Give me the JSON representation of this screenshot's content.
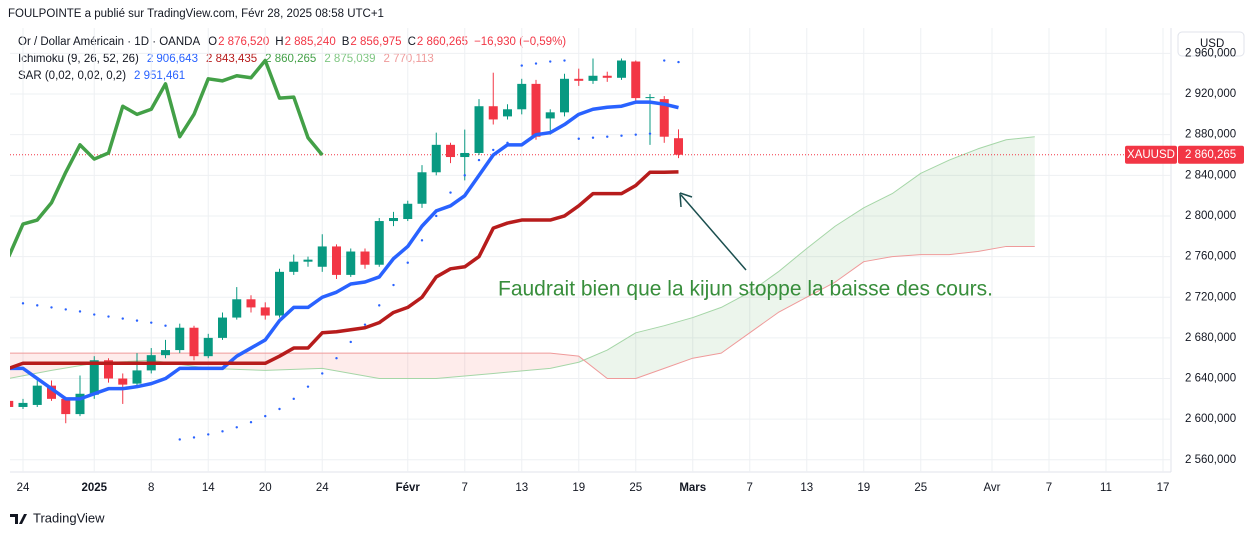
{
  "header": {
    "publisher": "FOULPOINTE a publié sur TradingView.com, Févr 28, 2025 08:58 UTC+1"
  },
  "legend": {
    "symbol": "Or / Dollar Américain · 1D · OANDA",
    "o_label": "O",
    "o": "2 876,520",
    "h_label": "H",
    "h": "2 885,240",
    "b_label": "B",
    "b": "2 856,975",
    "c_label": "C",
    "c": "2 860,265",
    "change": "−16,930 (−0,59%)",
    "ichimoku": "Ichimoku (9, 26, 52, 26)",
    "ichimoku_values": [
      "2 906,643",
      "2 843,435",
      "2 860,265",
      "2 875,039",
      "2 770,113"
    ],
    "ichimoku_colors": [
      "#2962ff",
      "#b71c1c",
      "#43a047",
      "#81c784",
      "#ef9a9a"
    ],
    "sar": "SAR (0,02, 0,02, 0,2)",
    "sar_value": "2 951,461",
    "sar_color": "#2962ff"
  },
  "chart_data": {
    "type": "candlestick",
    "currency": "USD",
    "symbol_tag": "XAUUSD",
    "last_price_label": "2 860,265",
    "annotation": "Faudrait bien que la kijun stoppe la baisse des cours.",
    "ylim": [
      2548,
      2985
    ],
    "xlim": [
      -1.9,
      81.5
    ],
    "yticks": [
      {
        "value": 2560,
        "label": "2 560,000"
      },
      {
        "value": 2600,
        "label": "2 600,000"
      },
      {
        "value": 2640,
        "label": "2 640,000"
      },
      {
        "value": 2680,
        "label": "2 680,000"
      },
      {
        "value": 2720,
        "label": "2 720,000"
      },
      {
        "value": 2760,
        "label": "2 760,000"
      },
      {
        "value": 2800,
        "label": "2 800,000"
      },
      {
        "value": 2840,
        "label": "2 840,000"
      },
      {
        "value": 2880,
        "label": "2 880,000"
      },
      {
        "value": 2920,
        "label": "2 920,000"
      },
      {
        "value": 2960,
        "label": "2 960,000"
      }
    ],
    "xticks": [
      {
        "value": 0,
        "label": "24"
      },
      {
        "value": 5,
        "label": "2025"
      },
      {
        "value": 9,
        "label": "8"
      },
      {
        "value": 13,
        "label": "14"
      },
      {
        "value": 17,
        "label": "20"
      },
      {
        "value": 21,
        "label": "24"
      },
      {
        "value": 27,
        "label": "Févr"
      },
      {
        "value": 31,
        "label": "7"
      },
      {
        "value": 35,
        "label": "13"
      },
      {
        "value": 39,
        "label": "19"
      },
      {
        "value": 43,
        "label": "25"
      },
      {
        "value": 47,
        "label": "Mars"
      },
      {
        "value": 51,
        "label": "7"
      },
      {
        "value": 55,
        "label": "13"
      },
      {
        "value": 59,
        "label": "19"
      },
      {
        "value": 63,
        "label": "25"
      },
      {
        "value": 68,
        "label": "Avr"
      },
      {
        "value": 72,
        "label": "7"
      },
      {
        "value": 76,
        "label": "11"
      },
      {
        "value": 80,
        "label": "17"
      }
    ],
    "up_color": "#089981",
    "down_color": "#f23645",
    "candles": {
      "x": [
        -1,
        0,
        1,
        2,
        3,
        4,
        5,
        6,
        7,
        8,
        9,
        10,
        11,
        12,
        13,
        14,
        15,
        16,
        17,
        18,
        19,
        20,
        21,
        22,
        23,
        24,
        25,
        26,
        27,
        28,
        29,
        30,
        31,
        32,
        33,
        34,
        35,
        36,
        37,
        38,
        39,
        40,
        41,
        42,
        43,
        44,
        45,
        46
      ],
      "open": [
        2618,
        2612,
        2614,
        2633,
        2620,
        2605,
        2624,
        2658,
        2640,
        2635,
        2648,
        2663,
        2668,
        2690,
        2662,
        2680,
        2700,
        2718,
        2710,
        2702,
        2745,
        2755,
        2750,
        2770,
        2742,
        2765,
        2752,
        2795,
        2797,
        2812,
        2843,
        2870,
        2858,
        2862,
        2908,
        2898,
        2905,
        2930,
        2896,
        2902,
        2935,
        2933,
        2938,
        2936,
        2952,
        2916,
        2915,
        2876.52
      ],
      "high": [
        2622,
        2620,
        2638,
        2638,
        2622,
        2643,
        2662,
        2660,
        2645,
        2665,
        2670,
        2678,
        2694,
        2692,
        2684,
        2705,
        2730,
        2722,
        2715,
        2748,
        2762,
        2760,
        2782,
        2772,
        2768,
        2768,
        2798,
        2804,
        2815,
        2850,
        2882,
        2872,
        2885,
        2915,
        2941,
        2910,
        2935,
        2934,
        2905,
        2940,
        2945,
        2955,
        2942,
        2955,
        2953,
        2920,
        2918,
        2885.24
      ],
      "low": [
        2608,
        2610,
        2612,
        2618,
        2596,
        2603,
        2620,
        2636,
        2615,
        2632,
        2645,
        2660,
        2665,
        2658,
        2660,
        2678,
        2698,
        2705,
        2698,
        2700,
        2742,
        2750,
        2745,
        2738,
        2740,
        2748,
        2750,
        2790,
        2795,
        2808,
        2840,
        2852,
        2835,
        2860,
        2890,
        2895,
        2900,
        2875,
        2880,
        2898,
        2928,
        2930,
        2932,
        2934,
        2912,
        2870,
        2872,
        2856.975
      ],
      "close": [
        2612,
        2616,
        2633,
        2620,
        2605,
        2625,
        2658,
        2640,
        2634,
        2648,
        2663,
        2668,
        2690,
        2662,
        2680,
        2700,
        2718,
        2710,
        2702,
        2745,
        2755,
        2757,
        2770,
        2742,
        2765,
        2752,
        2795,
        2798,
        2812,
        2843,
        2870,
        2858,
        2862,
        2908,
        2895,
        2905,
        2930,
        2878,
        2902,
        2935,
        2933,
        2938,
        2936,
        2953,
        2916,
        2917,
        2878,
        2860.265
      ]
    },
    "lines": [
      {
        "color": "#2962ff",
        "width": 3.5,
        "x": [
          -1,
          0,
          1,
          2,
          3,
          4,
          5,
          6,
          7,
          8,
          9,
          10,
          11,
          12,
          13,
          14,
          15,
          16,
          17,
          18,
          19,
          20,
          21,
          22,
          23,
          24,
          25,
          26,
          27,
          28,
          29,
          30,
          31,
          32,
          33,
          34,
          35,
          36,
          37,
          38,
          39,
          40,
          41,
          42,
          43,
          44,
          45,
          46
        ],
        "values": [
          2650,
          2650,
          2640,
          2630,
          2620,
          2620,
          2625,
          2630,
          2630,
          2632,
          2635,
          2640,
          2650,
          2650,
          2650,
          2650,
          2662,
          2670,
          2678,
          2697,
          2710,
          2710,
          2720,
          2725,
          2733,
          2735,
          2740,
          2758,
          2770,
          2790,
          2805,
          2810,
          2820,
          2840,
          2860,
          2870,
          2870,
          2880,
          2882,
          2890,
          2900,
          2905,
          2907,
          2908,
          2912,
          2912,
          2910,
          2906.643
        ]
      },
      {
        "color": "#b71c1c",
        "width": 3.5,
        "x": [
          -1,
          0,
          1,
          2,
          3,
          4,
          5,
          6,
          7,
          8,
          9,
          10,
          11,
          12,
          13,
          14,
          15,
          16,
          17,
          18,
          19,
          20,
          21,
          22,
          23,
          24,
          25,
          26,
          27,
          28,
          29,
          30,
          31,
          32,
          33,
          34,
          35,
          36,
          37,
          38,
          39,
          40,
          41,
          42,
          43,
          44,
          45,
          46
        ],
        "values": [
          2650,
          2655,
          2655,
          2655,
          2655,
          2655,
          2655,
          2655,
          2655,
          2655,
          2655,
          2655,
          2655,
          2655,
          2655,
          2655,
          2655,
          2655,
          2655,
          2662,
          2670,
          2670,
          2685,
          2686,
          2688,
          2690,
          2695,
          2705,
          2710,
          2720,
          2740,
          2748,
          2750,
          2760,
          2788,
          2793,
          2796,
          2796,
          2796,
          2800,
          2810,
          2822,
          2822,
          2822,
          2830,
          2843,
          2843,
          2843.435
        ]
      },
      {
        "color": "#43a047",
        "width": 3.5,
        "x": [
          -1,
          0,
          1,
          2,
          3,
          4,
          5,
          6,
          7,
          8,
          9,
          10,
          11,
          12,
          13,
          14,
          15,
          16,
          17,
          18,
          19,
          20,
          21
        ],
        "values": [
          2760,
          2792,
          2796,
          2813,
          2843,
          2870,
          2856,
          2862,
          2908,
          2900,
          2905,
          2930,
          2878,
          2900,
          2935,
          2933,
          2938,
          2936,
          2953,
          2916,
          2917,
          2877,
          2860
        ]
      }
    ],
    "cloud": {
      "color_a": "#a5d6a7",
      "color_b": "#ef9a9a",
      "fill_up": "rgba(67,160,71,0.10)",
      "fill_down": "rgba(244,67,54,0.10)",
      "x": [
        -1,
        2,
        5,
        9,
        13,
        17,
        21,
        25,
        29,
        33,
        37,
        39,
        41,
        43,
        45,
        47,
        49,
        51,
        53,
        55,
        57,
        59,
        61,
        63,
        65,
        67,
        69,
        71
      ],
      "span_a": [
        2640,
        2648,
        2655,
        2658,
        2650,
        2648,
        2650,
        2640,
        2640,
        2645,
        2650,
        2656,
        2668,
        2685,
        2692,
        2700,
        2710,
        2725,
        2745,
        2768,
        2790,
        2808,
        2822,
        2842,
        2855,
        2866,
        2875,
        2878
      ],
      "span_b": [
        2665,
        2665,
        2665,
        2665,
        2665,
        2665,
        2665,
        2665,
        2665,
        2665,
        2665,
        2662,
        2640,
        2640,
        2650,
        2660,
        2665,
        2685,
        2705,
        2720,
        2735,
        2755,
        2760,
        2762,
        2762,
        2765,
        2770,
        2770
      ]
    },
    "sar": {
      "color": "#2962ff",
      "x": [
        -1,
        0,
        1,
        2,
        3,
        4,
        5,
        6,
        7,
        8,
        9,
        10,
        11,
        12,
        13,
        14,
        15,
        16,
        17,
        18,
        19,
        20,
        21,
        22,
        23,
        24,
        25,
        26,
        27,
        28,
        29,
        30,
        31,
        32,
        33,
        34,
        35,
        36,
        37,
        38,
        39,
        40,
        41,
        42,
        43,
        44,
        45,
        46
      ],
      "values": [
        2716,
        2714,
        2712,
        2710,
        2708,
        2706,
        2703,
        2701,
        2699,
        2697,
        2695,
        2692,
        2580,
        2582,
        2585,
        2588,
        2592,
        2597,
        2603,
        2610,
        2620,
        2632,
        2645,
        2660,
        2676,
        2693,
        2712,
        2732,
        2754,
        2776,
        2800,
        2823,
        2840,
        2855,
        2865,
        2872,
        2948,
        2950,
        2952,
        2953,
        2876,
        2877,
        2878,
        2879,
        2880,
        2881,
        2953,
        2951.461
      ]
    }
  },
  "footer": {
    "brand": "TradingView"
  }
}
